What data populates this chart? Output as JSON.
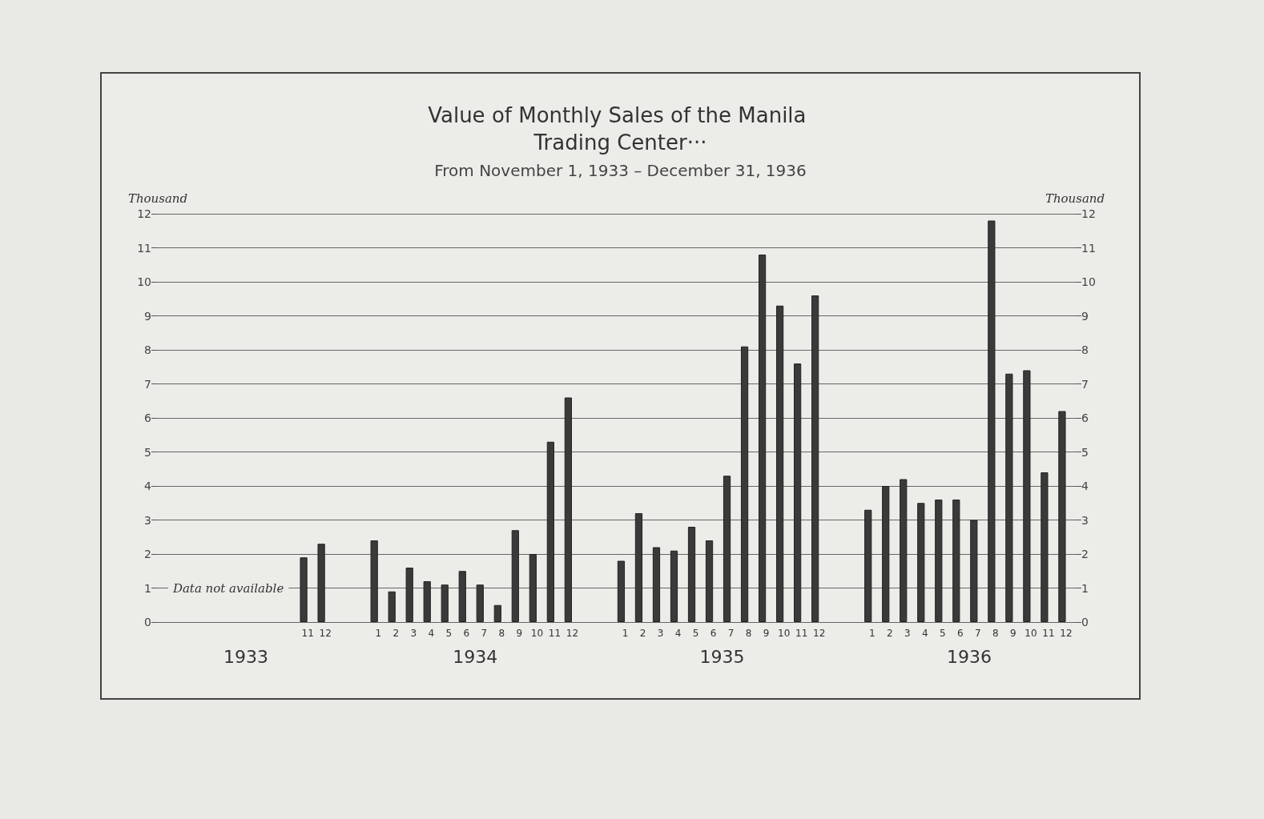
{
  "chart_data": {
    "type": "bar",
    "title": "Value of Monthly Sales of the Manila Trading Center···",
    "subtitle": "From November 1, 1933 – December 31, 1936",
    "ylabel": "Thousand",
    "y2label": "Thousand",
    "categories": [
      null,
      null,
      null,
      null,
      null,
      null,
      null,
      null,
      "11",
      "12",
      null,
      null,
      "1",
      "2",
      "3",
      "4",
      "5",
      "6",
      "7",
      "8",
      "9",
      "10",
      "11",
      "12",
      null,
      null,
      "1",
      "2",
      "3",
      "4",
      "5",
      "6",
      "7",
      "8",
      "9",
      "10",
      "11",
      "12",
      null,
      null,
      "1",
      "2",
      "3",
      "4",
      "5",
      "6",
      "7",
      "8",
      "9",
      "10",
      "11",
      "12"
    ],
    "values": [
      null,
      null,
      null,
      null,
      null,
      null,
      null,
      null,
      1.9,
      2.3,
      null,
      null,
      2.4,
      0.9,
      1.6,
      1.2,
      1.1,
      1.5,
      1.1,
      0.5,
      2.7,
      2.0,
      5.3,
      6.6,
      null,
      null,
      1.8,
      3.2,
      2.2,
      2.1,
      2.8,
      2.4,
      4.3,
      8.1,
      10.8,
      9.3,
      7.6,
      9.6,
      null,
      null,
      3.3,
      4.0,
      4.2,
      3.5,
      3.6,
      3.6,
      3.0,
      11.8,
      7.3,
      7.4,
      4.4,
      6.2
    ],
    "color": "#3a3a3a",
    "ylim": [
      0,
      12
    ],
    "yticks": [
      0,
      1,
      2,
      3,
      4,
      5,
      6,
      7,
      8,
      9,
      10,
      11,
      12
    ],
    "y2lim": [
      0,
      12
    ],
    "y2ticks": [
      0,
      1,
      2,
      3,
      4,
      5,
      6,
      7,
      8,
      9,
      10,
      11,
      12
    ],
    "grid": "y",
    "annotations": [
      "Data not available",
      "1933",
      "1934",
      "1935",
      "1936"
    ]
  }
}
